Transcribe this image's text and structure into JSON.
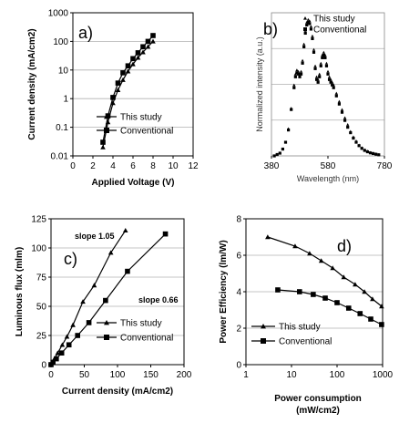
{
  "chart_data": [
    {
      "panel": "a)",
      "type": "line",
      "xlabel": "Applied Voltage (V)",
      "ylabel": "Current density (mA/cm2)",
      "xlim": [
        0,
        12
      ],
      "ylim": [
        0.01,
        1000
      ],
      "yscale": "log",
      "xticks": [
        "0",
        "2",
        "4",
        "6",
        "8",
        "10",
        "12"
      ],
      "yticks": [
        "0.01",
        "0.1",
        "1",
        "10",
        "100",
        "1000"
      ],
      "grid": "horizontal",
      "legend": "bottom-right",
      "series": [
        {
          "name": "This study",
          "marker": "triangle",
          "x": [
            3.0,
            3.5,
            4.0,
            4.5,
            5.0,
            5.5,
            6.0,
            6.5,
            7.0,
            7.5,
            8.0
          ],
          "y": [
            0.02,
            0.15,
            0.7,
            2.0,
            4.5,
            9.0,
            16.0,
            27.0,
            42.0,
            65.0,
            100.0
          ]
        },
        {
          "name": "Conventional",
          "marker": "square",
          "x": [
            3.0,
            3.5,
            4.0,
            4.5,
            5.0,
            5.5,
            6.0,
            6.5,
            7.0,
            7.5,
            8.0
          ],
          "y": [
            0.03,
            0.25,
            1.1,
            3.5,
            8.0,
            14.0,
            25.0,
            40.0,
            65.0,
            100.0,
            160.0
          ]
        }
      ]
    },
    {
      "panel": "b)",
      "type": "scatter",
      "xlabel": "Wavelength (nm)",
      "ylabel": "Normalized intensity (a.u.)",
      "xlim": [
        380,
        780
      ],
      "ylim": [
        0,
        1.05
      ],
      "xticks": [
        "380",
        "580",
        "780"
      ],
      "grid": "horizontal",
      "legend": "top-right",
      "series": [
        {
          "name": "This study",
          "marker": "triangle",
          "x": [
            390,
            400,
            410,
            420,
            430,
            440,
            450,
            460,
            465,
            470,
            475,
            480,
            485,
            490,
            495,
            500,
            505,
            510,
            515,
            520,
            525,
            530,
            535,
            540,
            545,
            550,
            555,
            560,
            565,
            570,
            575,
            580,
            585,
            590,
            595,
            600,
            610,
            620,
            630,
            640,
            650,
            660,
            670,
            680,
            690,
            700,
            710,
            720,
            730,
            740,
            750,
            760
          ],
          "y": [
            0.0,
            0.01,
            0.02,
            0.05,
            0.1,
            0.2,
            0.35,
            0.52,
            0.6,
            0.63,
            0.62,
            0.6,
            0.62,
            0.7,
            0.82,
            0.92,
            0.98,
            1.0,
            0.99,
            0.95,
            0.88,
            0.78,
            0.66,
            0.58,
            0.56,
            0.6,
            0.68,
            0.74,
            0.76,
            0.74,
            0.68,
            0.62,
            0.58,
            0.56,
            0.54,
            0.52,
            0.46,
            0.4,
            0.34,
            0.28,
            0.23,
            0.18,
            0.14,
            0.11,
            0.08,
            0.06,
            0.045,
            0.035,
            0.025,
            0.02,
            0.015,
            0.01
          ]
        },
        {
          "name": "Conventional",
          "marker": "square",
          "x": [
            390,
            400,
            410,
            420,
            430,
            440,
            450,
            460,
            465,
            470,
            475,
            480,
            485,
            490,
            495,
            500,
            505,
            510,
            515,
            520,
            525,
            530,
            535,
            540,
            545,
            550,
            555,
            560,
            565,
            570,
            575,
            580,
            585,
            590,
            595,
            600,
            610,
            620,
            630,
            640,
            650,
            660,
            670,
            680,
            690,
            700,
            710,
            720,
            730,
            740,
            750,
            760
          ],
          "y": [
            0.0,
            0.01,
            0.02,
            0.05,
            0.1,
            0.19,
            0.34,
            0.5,
            0.58,
            0.61,
            0.6,
            0.58,
            0.6,
            0.68,
            0.8,
            0.9,
            0.96,
            0.98,
            0.97,
            0.93,
            0.86,
            0.76,
            0.64,
            0.56,
            0.54,
            0.58,
            0.66,
            0.72,
            0.74,
            0.72,
            0.66,
            0.6,
            0.56,
            0.54,
            0.52,
            0.5,
            0.44,
            0.38,
            0.32,
            0.26,
            0.21,
            0.17,
            0.13,
            0.1,
            0.075,
            0.055,
            0.04,
            0.03,
            0.022,
            0.017,
            0.012,
            0.008
          ]
        }
      ]
    },
    {
      "panel": "c)",
      "type": "line",
      "xlabel": "Current density (mA/cm2)",
      "ylabel": "Luminous flux (mlm)",
      "xlim": [
        0,
        200
      ],
      "ylim": [
        0,
        125
      ],
      "xticks": [
        "0",
        "50",
        "100",
        "150",
        "200"
      ],
      "yticks": [
        "0",
        "25",
        "50",
        "75",
        "100",
        "125"
      ],
      "grid": "horizontal",
      "legend": "bottom-right",
      "annotations": [
        {
          "text": "slope 1.05"
        },
        {
          "text": "slope 0.66"
        }
      ],
      "series": [
        {
          "name": "This study",
          "marker": "triangle",
          "x": [
            0,
            2,
            5,
            10,
            17,
            24,
            33,
            48,
            65,
            90,
            112
          ],
          "y": [
            0,
            2,
            5,
            10,
            17,
            24,
            34,
            54,
            68,
            96,
            115
          ]
        },
        {
          "name": "Conventional",
          "marker": "square",
          "x": [
            0,
            3,
            8,
            16,
            27,
            40,
            57,
            82,
            115,
            172
          ],
          "y": [
            0,
            2,
            5,
            10,
            17,
            25,
            36,
            55,
            80,
            112
          ]
        }
      ]
    },
    {
      "panel": "d)",
      "type": "line",
      "xlabel": "Power consumption (mW/cm2)",
      "ylabel": "Power Efficiency (lm/W)",
      "xlim": [
        1,
        1000
      ],
      "ylim": [
        0,
        8
      ],
      "xscale": "log",
      "xticks": [
        "1",
        "10",
        "100",
        "1000"
      ],
      "yticks": [
        "0",
        "2",
        "4",
        "6",
        "8"
      ],
      "grid": "horizontal",
      "legend": "bottom-left",
      "series": [
        {
          "name": "This study",
          "marker": "triangle",
          "x": [
            3,
            12,
            25,
            45,
            80,
            140,
            250,
            400,
            600,
            950
          ],
          "y": [
            7.0,
            6.5,
            6.1,
            5.7,
            5.3,
            4.8,
            4.4,
            4.0,
            3.6,
            3.2
          ]
        },
        {
          "name": "Conventional",
          "marker": "square",
          "x": [
            5,
            15,
            30,
            55,
            100,
            180,
            320,
            550,
            950
          ],
          "y": [
            4.1,
            4.0,
            3.85,
            3.65,
            3.4,
            3.1,
            2.8,
            2.5,
            2.2
          ]
        }
      ]
    }
  ]
}
